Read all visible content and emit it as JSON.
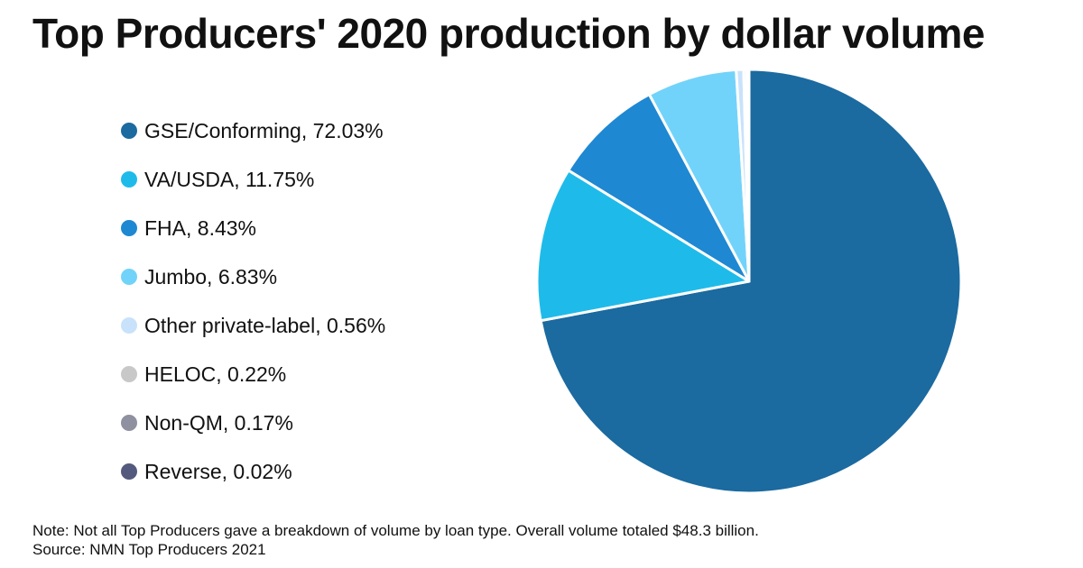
{
  "chart_data": {
    "type": "pie",
    "title": "Top Producers' 2020 production by dollar volume",
    "slices": [
      {
        "label": "GSE/Conforming",
        "value": 72.03,
        "display": "GSE/Conforming, 72.03%",
        "color": "#1b6aa0"
      },
      {
        "label": "VA/USDA",
        "value": 11.75,
        "display": "VA/USDA, 11.75%",
        "color": "#1ebbea"
      },
      {
        "label": "FHA",
        "value": 8.43,
        "display": "FHA, 8.43%",
        "color": "#1e88d2"
      },
      {
        "label": "Jumbo",
        "value": 6.83,
        "display": "Jumbo, 6.83%",
        "color": "#72d3fa"
      },
      {
        "label": "Other private-label",
        "value": 0.56,
        "display": "Other private-label, 0.56%",
        "color": "#c9e2fb"
      },
      {
        "label": "HELOC",
        "value": 0.22,
        "display": "HELOC, 0.22%",
        "color": "#c8c8c8"
      },
      {
        "label": "Non-QM",
        "value": 0.17,
        "display": "Non-QM, 0.17%",
        "color": "#8f90a0"
      },
      {
        "label": "Reverse",
        "value": 0.02,
        "display": "Reverse, 0.02%",
        "color": "#545a7e"
      }
    ],
    "legend_position": "left",
    "start_angle": "12 o'clock",
    "direction": "clockwise"
  },
  "footer": {
    "note": "Note: Not all Top Producers gave a breakdown of volume by loan type. Overall volume totaled $48.3 billion.",
    "source": "Source: NMN Top Producers 2021"
  }
}
